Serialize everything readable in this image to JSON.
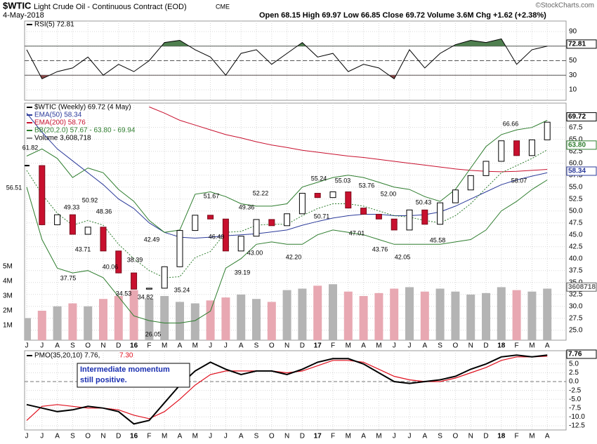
{
  "header": {
    "symbol": "$WTIC",
    "name": "Light Crude Oil - Continuous Contract (EOD)",
    "exchange": "CME",
    "date": "4-May-2018",
    "quote": "Open 68.15 High 69.97 Low 66.85 Close 69.72 Volume 3.6M Chg +1.62 (+2.38%)",
    "watermark": "©StockCharts.com"
  },
  "chart_data": [
    {
      "type": "rsi",
      "series": [
        {
          "name": "RSI(5) 72.81",
          "color": "#000000",
          "values": [
            65,
            25,
            35,
            40,
            55,
            30,
            45,
            35,
            50,
            75,
            78,
            65,
            55,
            30,
            60,
            65,
            45,
            60,
            75,
            55,
            60,
            35,
            45,
            40,
            25,
            65,
            40,
            60,
            72,
            78,
            75,
            80,
            45,
            65,
            70
          ]
        }
      ],
      "ylim": [
        -4.5,
        104.5
      ],
      "yticks": [
        10,
        30,
        50,
        70,
        90
      ],
      "levels": [
        70,
        50,
        30
      ],
      "overbought_color": "#4f7f4f",
      "oversold_color": "#8b4a4a",
      "grid": true,
      "last_values": [
        {
          "value": 72.81,
          "color": "#000000"
        }
      ]
    },
    {
      "type": "candlestick",
      "categories": [
        "J",
        "J",
        "A",
        "S",
        "O",
        "N",
        "D",
        "16",
        "F",
        "M",
        "A",
        "M",
        "J",
        "J",
        "A",
        "S",
        "O",
        "N",
        "D",
        "17",
        "F",
        "M",
        "A",
        "M",
        "J",
        "J",
        "A",
        "S",
        "O",
        "N",
        "D",
        "18",
        "F",
        "M",
        "A"
      ],
      "series": [
        {
          "name": "$WTIC (Weekly) 69.72 (4 May)",
          "type": "candle",
          "up_color": "#ffffff",
          "down_color": "#c8102e",
          "values": [
            59.5,
            47.1,
            49.2,
            45.1,
            46.6,
            41.6,
            37.0,
            33.6,
            33.8,
            38.3,
            45.9,
            49.1,
            48.3,
            41.6,
            44.7,
            48.2,
            46.9,
            49.4,
            53.7,
            52.8,
            54.0,
            50.6,
            49.3,
            48.3,
            46.0,
            50.2,
            47.2,
            51.7,
            54.4,
            57.4,
            60.4,
            64.7,
            61.6,
            64.9,
            68.6
          ]
        },
        {
          "name": "EMA(50) 58.34",
          "type": "line",
          "color": "#2b3a9a",
          "values": [
            70.5,
            66.5,
            63,
            60.5,
            58,
            55.5,
            52.5,
            50.5,
            47.5,
            45.5,
            44.5,
            44.3,
            44.5,
            44.8,
            45.0,
            45.2,
            45.6,
            46.0,
            47,
            47.8,
            48.5,
            49,
            49.3,
            49.3,
            49,
            49,
            49.2,
            49.8,
            51,
            52.5,
            54,
            55.5,
            56.5,
            57.3,
            58.0
          ]
        },
        {
          "name": "EMA(200) 58.76",
          "type": "line",
          "color": "#c8102e",
          "values": [
            null,
            null,
            null,
            null,
            null,
            null,
            null,
            null,
            71.8,
            70.5,
            69,
            68,
            67,
            66,
            65.3,
            64.5,
            63.8,
            63.3,
            62.7,
            62.3,
            61.9,
            61.5,
            61.2,
            60.8,
            60.4,
            60,
            59.6,
            59.2,
            58.8,
            58.5,
            58.3,
            58.2,
            58.3,
            58.5,
            58.7
          ]
        },
        {
          "name": "BB(20,2.0) 57.67 - 63.80 - 69.94",
          "type": "band",
          "color": "#2e7d2e",
          "upper": [
            61.5,
            63,
            61,
            57,
            59,
            58,
            54.5,
            52,
            48,
            45.5,
            46,
            53.5,
            54,
            53,
            51.5,
            51,
            51,
            51.5,
            55,
            56,
            57,
            57.5,
            57,
            56,
            55,
            54.5,
            53,
            52,
            54.5,
            59,
            63.5,
            66,
            67,
            67.5,
            69
          ],
          "middle": [
            58.5,
            53.5,
            49.5,
            47,
            48,
            47,
            43,
            40,
            37.5,
            36,
            36.2,
            40.2,
            41.5,
            45.5,
            45.7,
            47,
            47.2,
            47.2,
            49,
            50.5,
            51.5,
            51.5,
            51,
            50,
            49,
            48.7,
            48,
            47.5,
            49,
            51.5,
            54.8,
            58,
            59.5,
            61,
            62.8
          ],
          "lower": [
            55,
            44,
            38,
            37,
            37.5,
            36,
            32,
            28,
            27,
            26.5,
            26.5,
            27,
            29,
            38,
            40,
            43,
            43.5,
            43,
            43,
            45,
            46,
            45.5,
            45,
            44,
            43,
            43,
            43,
            43,
            43.5,
            44,
            46,
            50,
            52,
            54.5,
            56.5
          ]
        },
        {
          "name": "Volume 3,608,718",
          "type": "volume",
          "axis": "y2",
          "up_color": "#b4b4b4",
          "down_color": "#e8a8b2",
          "values": [
            1500000,
            2000000,
            2300000,
            2500000,
            2300000,
            2800000,
            3000000,
            3400000,
            2800000,
            3000000,
            2600000,
            2500000,
            2700000,
            2900000,
            3100000,
            2800000,
            2600000,
            3400000,
            3500000,
            3700000,
            3800000,
            3300000,
            3000000,
            3200000,
            3500000,
            3600000,
            3300000,
            3500000,
            3300000,
            3100000,
            3200000,
            3600000,
            3400000,
            3300000,
            3500000
          ]
        }
      ],
      "ylim": [
        22.9,
        72.6
      ],
      "yticks": [
        {
          "value": 25,
          "label": "25.0"
        },
        27.5,
        {
          "value": 30,
          "label": "30.0"
        },
        32.5,
        {
          "value": 35,
          "label": "35.0"
        },
        37.5,
        {
          "value": 40,
          "label": "40.0"
        },
        42.5,
        {
          "value": 45,
          "label": "45.0"
        },
        47.5,
        {
          "value": 50,
          "label": "50.0"
        },
        52.5,
        {
          "value": 55,
          "label": "55.0"
        },
        57.5,
        {
          "value": 60,
          "label": "60.0"
        },
        62.5,
        {
          "value": 65,
          "label": "65.0"
        },
        67.5
      ],
      "y2lim": [
        0,
        16100000
      ],
      "y2ticks": [
        {
          "value": 1000000,
          "label": "1M"
        },
        {
          "value": 2000000,
          "label": "2M"
        },
        {
          "value": 3000000,
          "label": "3M"
        },
        {
          "value": 4000000,
          "label": "4M"
        },
        {
          "value": 5000000,
          "label": "5M"
        }
      ],
      "grid": true,
      "price_labels": [
        "61.82",
        "56.51",
        "49.33",
        "50.92",
        "48.36",
        "43.71",
        "37.75",
        "40.06",
        "38.39",
        "34.53",
        "34.82",
        "26.05",
        "42.49",
        "35.24",
        "51.67",
        "46.40",
        "49.36",
        "43.00",
        "39.19",
        "52.22",
        "42.20",
        "55.24",
        "50.71",
        "55.03",
        "53.76",
        "47.01",
        "52.00",
        "43.76",
        "42.05",
        "50.43",
        "45.58",
        "66.66",
        "58.07"
      ],
      "last_values": [
        {
          "value": 69.72,
          "color": "#000000"
        },
        {
          "value": 63.8,
          "label": "63.80",
          "color": "#2e7d2e"
        },
        {
          "value": 58.34,
          "color": "#2b3a9a"
        },
        {
          "value": 3608718,
          "axis": "y2",
          "color": "#666666"
        }
      ]
    },
    {
      "type": "pmo",
      "series": [
        {
          "name": "PMO(35,20,10) 7.76,",
          "color": "#000000",
          "values": [
            -6.5,
            -7.5,
            -8.5,
            -8,
            -7,
            -7.5,
            -8.5,
            -12,
            -11,
            -6,
            -1,
            3,
            5.5,
            3.5,
            2,
            3,
            3,
            2,
            3.5,
            5.5,
            6.5,
            6.5,
            5,
            2.5,
            0,
            -0.5,
            0,
            0.5,
            1.5,
            3.5,
            5,
            7,
            7.5,
            7,
            7.5
          ]
        },
        {
          "name": "7.30",
          "color": "#e0101e",
          "values": [
            -11,
            -7,
            -6.5,
            -7,
            -7.5,
            -7.5,
            -8,
            -9.5,
            -10.5,
            -8.5,
            -5,
            -1,
            2,
            3,
            3,
            3,
            3,
            2.5,
            3,
            4.5,
            6,
            6,
            5.5,
            3.5,
            1.5,
            0.5,
            0,
            0,
            1,
            2.5,
            4,
            6,
            7,
            7,
            7.2
          ]
        }
      ],
      "ylim": [
        -13.7,
        8.75
      ],
      "yticks": [
        {
          "value": 5,
          "label": "5.0"
        },
        2.5,
        {
          "value": 0,
          "label": "0.0"
        },
        -2.5,
        {
          "value": -5,
          "label": "-5.0"
        },
        -7.5,
        {
          "value": -10,
          "label": "-10.0"
        },
        -12.5
      ],
      "grid": true,
      "annotations": [
        "Intermediate momentum",
        "still positive."
      ],
      "last_values": [
        {
          "value": 7.76,
          "color": "#000000"
        }
      ]
    }
  ]
}
